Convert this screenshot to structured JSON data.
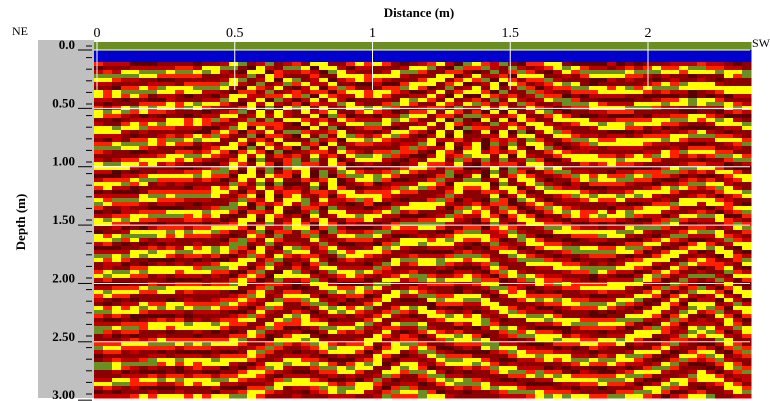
{
  "chart_data": {
    "type": "radargram",
    "x_label": "Distance (m)",
    "y_label": "Depth (m)",
    "left_end_label": "NE",
    "right_end_label": "SW",
    "xlim": [
      0,
      2.37
    ],
    "xticks": [
      0,
      0.5,
      1,
      1.5,
      2
    ],
    "ylim": [
      0,
      3.05
    ],
    "yticks": [
      {
        "value": 0,
        "label": "0.0"
      },
      {
        "value": 0.5,
        "label": "0.50"
      },
      {
        "value": 1,
        "label": "1.00"
      },
      {
        "value": 1.5,
        "label": "1.50"
      },
      {
        "value": 2,
        "label": "2.00"
      },
      {
        "value": 2.5,
        "label": "2.50"
      },
      {
        "value": 3,
        "label": "3.00"
      }
    ],
    "grid": true
  }
}
